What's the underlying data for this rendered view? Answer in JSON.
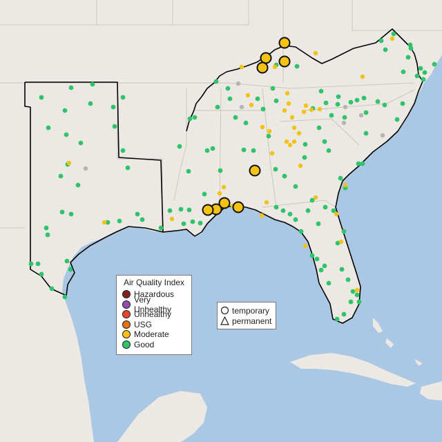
{
  "legend": {
    "title": "Air Quality Index",
    "levels": [
      {
        "label": "Hazardous",
        "color": "#7e2421"
      },
      {
        "label": "Very Unhealthy",
        "color": "#8e4fb1"
      },
      {
        "label": "Unhealthy",
        "color": "#e8462c"
      },
      {
        "label": "USG",
        "color": "#e57216"
      },
      {
        "label": "Moderate",
        "color": "#f3c213"
      },
      {
        "label": "Good",
        "color": "#2fc46b"
      }
    ]
  },
  "shape_legend": {
    "temporary": "temporary",
    "permanent": "permanent"
  },
  "colors": {
    "water": "#aac8e4",
    "land": "#ece9e4",
    "border": "#000000",
    "unavailable": "#b4b4b4"
  }
}
